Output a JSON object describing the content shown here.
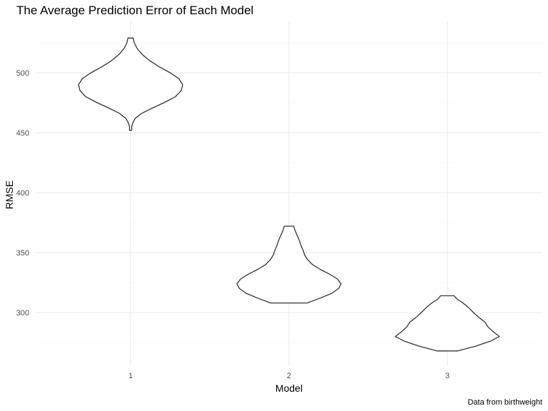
{
  "chart_data": {
    "type": "violin",
    "title": "The Average Prediction Error of Each Model",
    "xlabel": "Model",
    "ylabel": "RMSE",
    "caption": "Data from birthweight",
    "categories": [
      "1",
      "2",
      "3"
    ],
    "y_ticks": [
      300,
      350,
      400,
      450,
      500
    ],
    "y_minor_ticks": [
      275,
      325,
      375,
      425,
      475,
      525
    ],
    "ylim": [
      250,
      540
    ],
    "grid": true,
    "series": [
      {
        "category": "1",
        "density": [
          [
            452,
            0.02
          ],
          [
            455,
            0.02
          ],
          [
            458,
            0.04
          ],
          [
            462,
            0.09
          ],
          [
            466,
            0.21
          ],
          [
            470,
            0.39
          ],
          [
            475,
            0.64
          ],
          [
            480,
            0.86
          ],
          [
            485,
            0.97
          ],
          [
            490,
            1.0
          ],
          [
            495,
            0.93
          ],
          [
            500,
            0.76
          ],
          [
            505,
            0.55
          ],
          [
            510,
            0.37
          ],
          [
            515,
            0.23
          ],
          [
            520,
            0.13
          ],
          [
            525,
            0.07
          ],
          [
            529,
            0.05
          ]
        ]
      },
      {
        "category": "2",
        "density": [
          [
            308,
            0.35
          ],
          [
            312,
            0.6
          ],
          [
            316,
            0.82
          ],
          [
            320,
            0.95
          ],
          [
            324,
            1.0
          ],
          [
            328,
            0.93
          ],
          [
            332,
            0.78
          ],
          [
            336,
            0.6
          ],
          [
            340,
            0.45
          ],
          [
            344,
            0.36
          ],
          [
            348,
            0.3
          ],
          [
            352,
            0.27
          ],
          [
            356,
            0.23
          ],
          [
            360,
            0.2
          ],
          [
            364,
            0.16
          ],
          [
            368,
            0.12
          ],
          [
            372,
            0.09
          ]
        ]
      },
      {
        "category": "3",
        "density": [
          [
            268,
            0.2
          ],
          [
            272,
            0.55
          ],
          [
            276,
            0.82
          ],
          [
            280,
            1.0
          ],
          [
            284,
            0.88
          ],
          [
            288,
            0.78
          ],
          [
            292,
            0.72
          ],
          [
            296,
            0.6
          ],
          [
            300,
            0.5
          ],
          [
            304,
            0.41
          ],
          [
            308,
            0.3
          ],
          [
            311,
            0.19
          ],
          [
            314,
            0.13
          ]
        ]
      }
    ]
  }
}
